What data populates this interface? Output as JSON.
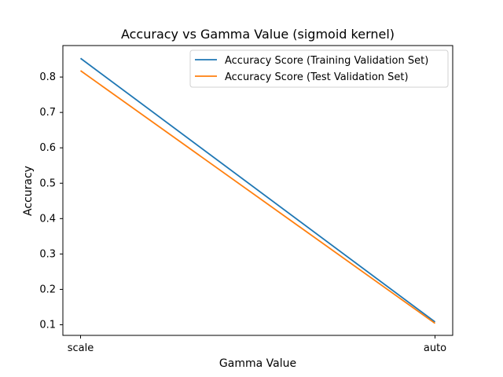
{
  "chart_data": {
    "type": "line",
    "title": "Accuracy vs Gamma Value (sigmoid kernel)",
    "xlabel": "Gamma Value",
    "ylabel": "Accuracy",
    "categories": [
      "scale",
      "auto"
    ],
    "ylim": [
      0.07,
      0.889
    ],
    "yticks": [
      0.1,
      0.2,
      0.3,
      0.4,
      0.5,
      0.6,
      0.7,
      0.8
    ],
    "ytick_labels": [
      "0.1",
      "0.2",
      "0.3",
      "0.4",
      "0.5",
      "0.6",
      "0.7",
      "0.8"
    ],
    "grid": false,
    "legend_position": "top-right",
    "series": [
      {
        "name": "Accuracy Score (Training Validation Set)",
        "values": [
          0.853,
          0.108
        ],
        "color": "#1f77b4"
      },
      {
        "name": "Accuracy Score (Test Validation Set)",
        "values": [
          0.818,
          0.104
        ],
        "color": "#ff7f0e"
      }
    ]
  }
}
